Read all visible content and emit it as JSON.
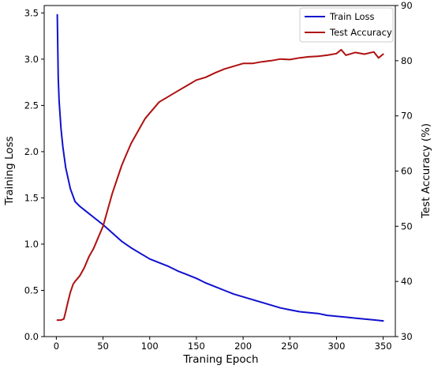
{
  "chart_data": {
    "type": "line",
    "xlabel": "Traning Epoch",
    "ylabel_left": "Training Loss",
    "ylabel_right": "Test Accuracy (%)",
    "xlim": [
      -13,
      363
    ],
    "ylim_left": [
      0.0,
      3.58
    ],
    "ylim_right": [
      30,
      90
    ],
    "x_ticks": [
      0,
      50,
      100,
      150,
      200,
      250,
      300,
      350
    ],
    "y_left_ticks": [
      0.0,
      0.5,
      1.0,
      1.5,
      2.0,
      2.5,
      3.0,
      3.5
    ],
    "y_right_ticks": [
      30,
      40,
      50,
      60,
      70,
      80,
      90
    ],
    "tick_labels": {
      "x": [
        "0",
        "50",
        "100",
        "150",
        "200",
        "250",
        "300",
        "350"
      ],
      "y_left": [
        "0.0",
        "0.5",
        "1.0",
        "1.5",
        "2.0",
        "2.5",
        "3.0",
        "3.5"
      ],
      "y_right": [
        "30",
        "40",
        "50",
        "60",
        "70",
        "80",
        "90"
      ]
    },
    "grid": false,
    "legend": {
      "position": "top-right"
    },
    "series": [
      {
        "name": "Train Loss",
        "axis": "left",
        "color": "#1010d0",
        "x": [
          1,
          2,
          3,
          5,
          7,
          10,
          15,
          20,
          25,
          30,
          40,
          50,
          60,
          70,
          80,
          90,
          100,
          110,
          120,
          130,
          140,
          150,
          160,
          170,
          180,
          190,
          200,
          210,
          220,
          230,
          240,
          250,
          260,
          270,
          280,
          290,
          300,
          310,
          320,
          330,
          340,
          350
        ],
        "y": [
          3.48,
          2.8,
          2.55,
          2.25,
          2.05,
          1.83,
          1.6,
          1.46,
          1.41,
          1.37,
          1.29,
          1.21,
          1.12,
          1.03,
          0.96,
          0.9,
          0.84,
          0.8,
          0.76,
          0.71,
          0.67,
          0.63,
          0.58,
          0.54,
          0.5,
          0.46,
          0.43,
          0.4,
          0.37,
          0.34,
          0.31,
          0.29,
          0.27,
          0.26,
          0.25,
          0.23,
          0.22,
          0.21,
          0.2,
          0.19,
          0.18,
          0.17
        ]
      },
      {
        "name": "Test Accuracy",
        "axis": "right",
        "color": "#b01010",
        "x": [
          1,
          5,
          8,
          10,
          12,
          15,
          18,
          20,
          25,
          30,
          35,
          40,
          45,
          50,
          55,
          60,
          65,
          70,
          75,
          80,
          85,
          90,
          95,
          100,
          105,
          110,
          120,
          130,
          140,
          150,
          160,
          170,
          180,
          190,
          200,
          210,
          220,
          230,
          240,
          250,
          260,
          270,
          280,
          290,
          300,
          305,
          310,
          320,
          330,
          340,
          345,
          350
        ],
        "y": [
          33.0,
          33.0,
          33.2,
          34.5,
          36.0,
          38.0,
          39.5,
          40.0,
          41.0,
          42.5,
          44.5,
          46.0,
          48.0,
          50.0,
          53.0,
          56.0,
          58.5,
          61.0,
          63.0,
          65.0,
          66.5,
          68.0,
          69.5,
          70.5,
          71.5,
          72.5,
          73.5,
          74.5,
          75.5,
          76.5,
          77.0,
          77.8,
          78.5,
          79.0,
          79.5,
          79.5,
          79.8,
          80.0,
          80.3,
          80.2,
          80.5,
          80.7,
          80.8,
          81.0,
          81.3,
          82.0,
          81.0,
          81.5,
          81.2,
          81.6,
          80.5,
          81.2
        ]
      }
    ]
  }
}
